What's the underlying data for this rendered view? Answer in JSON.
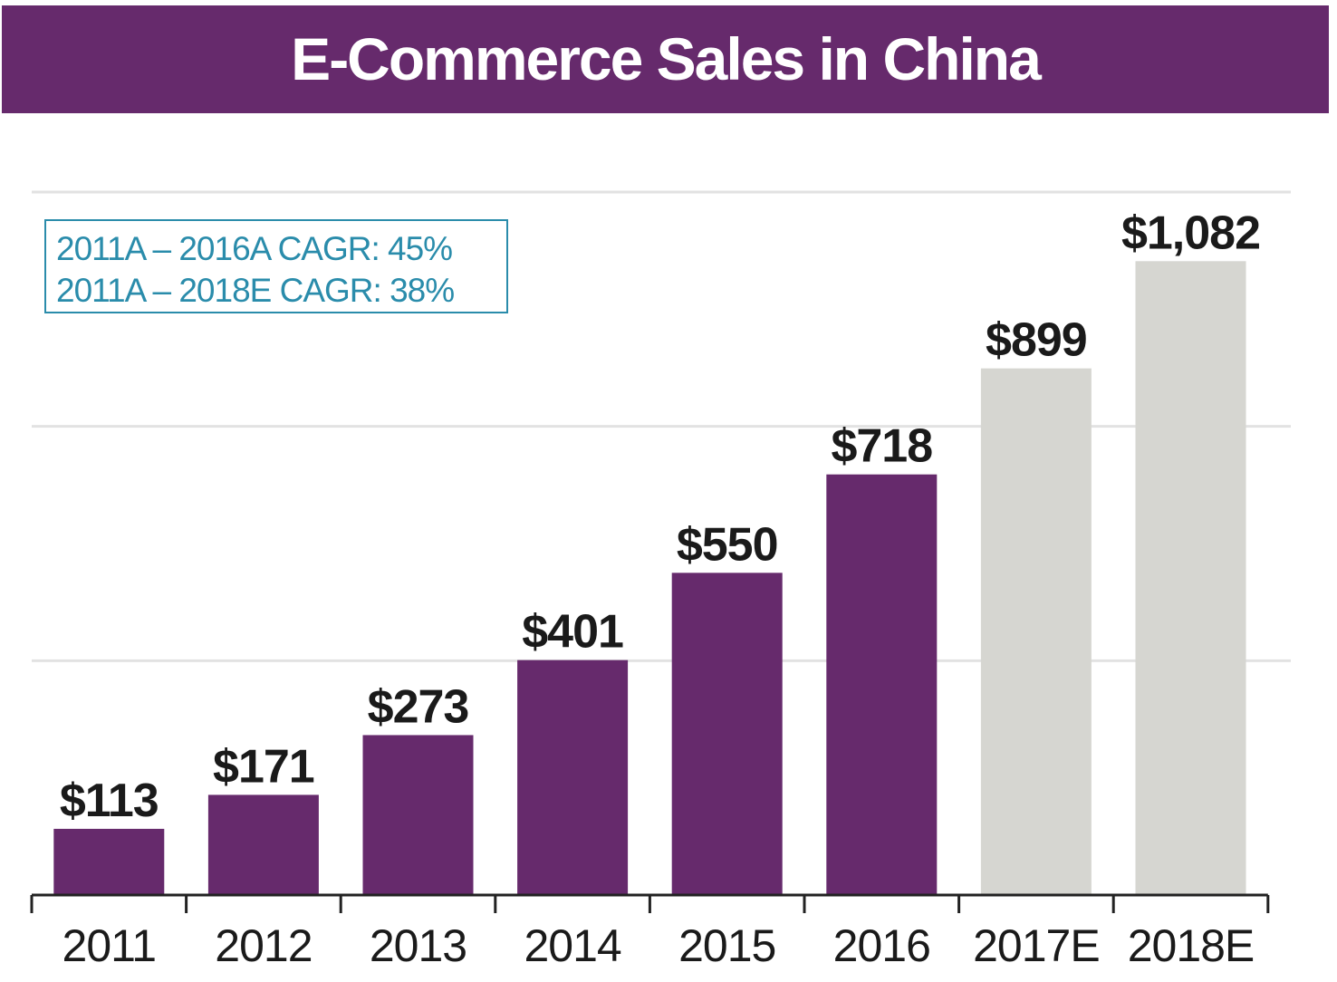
{
  "title": "E-Commerce Sales in China",
  "cagr_notes": [
    "2011A – 2016A CAGR: 45%",
    "2011A – 2018E CAGR: 38%"
  ],
  "colors": {
    "actual": "#662a6c",
    "estimate": "#d6d6d1",
    "accent": "#2a8cab",
    "grid": "#e2e2e2",
    "text": "#1a1a1a"
  },
  "chart_data": {
    "type": "bar",
    "title": "E-Commerce Sales in China",
    "xlabel": "",
    "ylabel": "",
    "ylim": [
      0,
      1200
    ],
    "gridlines": [
      400,
      800,
      1200
    ],
    "categories": [
      "2011",
      "2012",
      "2013",
      "2014",
      "2015",
      "2016",
      "2017E",
      "2018E"
    ],
    "values": [
      113,
      171,
      273,
      401,
      550,
      718,
      899,
      1082
    ],
    "value_labels": [
      "$113",
      "$171",
      "$273",
      "$401",
      "$550",
      "$718",
      "$899",
      "$1,082"
    ],
    "bar_kind": [
      "actual",
      "actual",
      "actual",
      "actual",
      "actual",
      "actual",
      "estimate",
      "estimate"
    ]
  }
}
